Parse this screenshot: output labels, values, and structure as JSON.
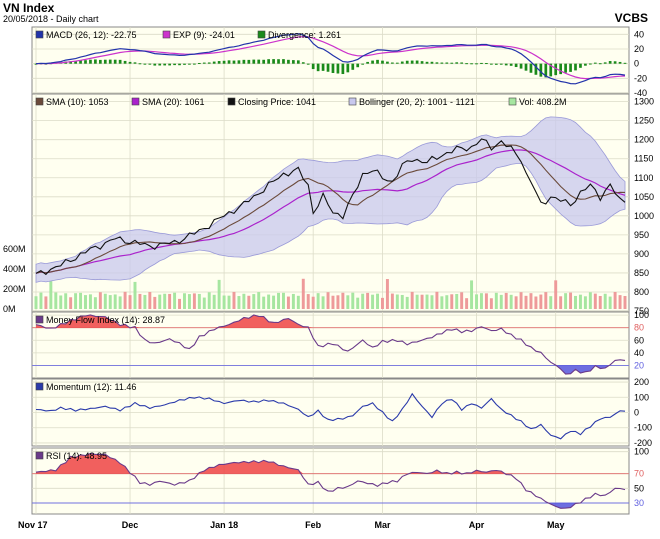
{
  "header": {
    "title": "VN Index",
    "subtitle": "20/05/2018 - Daily chart",
    "broker": "VCBS"
  },
  "colors": {
    "panel_bg": "#fffff0",
    "grid": "#dcdcc8",
    "macd": "#2233aa",
    "exp": "#cc33cc",
    "divergence": "#1a8a1a",
    "sma10": "#6b4a3a",
    "sma20": "#aa22cc",
    "price": "#111111",
    "bollinger_fill": "#c8c8ee",
    "bollinger_edge": "#9a9ad8",
    "vol_up": "#a6e6a0",
    "vol_down": "#ee9a9a",
    "mfi": "#6a3a8a",
    "mom": "#2a3aaa",
    "rsi": "#6a3a8a",
    "over": "#ee4444",
    "under": "#5555dd"
  },
  "chart_data": {
    "type": "line",
    "n": 120,
    "x_ticks": [
      {
        "label": "Nov 17",
        "idx": 0
      },
      {
        "label": "Dec",
        "idx": 19
      },
      {
        "label": "Jan 18",
        "idx": 38
      },
      {
        "label": "Feb",
        "idx": 56
      },
      {
        "label": "Mar",
        "idx": 70
      },
      {
        "label": "Apr",
        "idx": 89
      },
      {
        "label": "May",
        "idx": 105
      }
    ],
    "price_anchors": [
      [
        0,
        845
      ],
      [
        5,
        870
      ],
      [
        10,
        905
      ],
      [
        16,
        940
      ],
      [
        20,
        930
      ],
      [
        23,
        920
      ],
      [
        28,
        930
      ],
      [
        33,
        960
      ],
      [
        38,
        1000
      ],
      [
        42,
        1030
      ],
      [
        47,
        1080
      ],
      [
        50,
        1110
      ],
      [
        53,
        1120
      ],
      [
        55,
        1080
      ],
      [
        56,
        1010
      ],
      [
        58,
        1050
      ],
      [
        60,
        1010
      ],
      [
        62,
        1000
      ],
      [
        64,
        1050
      ],
      [
        66,
        1110
      ],
      [
        68,
        1120
      ],
      [
        70,
        1100
      ],
      [
        72,
        1090
      ],
      [
        74,
        1130
      ],
      [
        76,
        1150
      ],
      [
        79,
        1140
      ],
      [
        82,
        1160
      ],
      [
        85,
        1175
      ],
      [
        88,
        1180
      ],
      [
        90,
        1200
      ],
      [
        92,
        1180
      ],
      [
        94,
        1195
      ],
      [
        96,
        1175
      ],
      [
        98,
        1150
      ],
      [
        99,
        1110
      ],
      [
        100,
        1090
      ],
      [
        102,
        1030
      ],
      [
        104,
        1050
      ],
      [
        106,
        1040
      ],
      [
        108,
        1030
      ],
      [
        110,
        1060
      ],
      [
        112,
        1080
      ],
      [
        114,
        1050
      ],
      [
        116,
        1080
      ],
      [
        118,
        1040
      ],
      [
        119,
        1041
      ]
    ],
    "mfi_anchors": [
      [
        0,
        85
      ],
      [
        3,
        78
      ],
      [
        6,
        88
      ],
      [
        10,
        100
      ],
      [
        14,
        97
      ],
      [
        17,
        85
      ],
      [
        20,
        80
      ],
      [
        22,
        60
      ],
      [
        24,
        55
      ],
      [
        27,
        62
      ],
      [
        29,
        55
      ],
      [
        31,
        45
      ],
      [
        33,
        65
      ],
      [
        36,
        78
      ],
      [
        39,
        85
      ],
      [
        42,
        95
      ],
      [
        45,
        100
      ],
      [
        48,
        87
      ],
      [
        51,
        95
      ],
      [
        53,
        85
      ],
      [
        55,
        80
      ],
      [
        57,
        50
      ],
      [
        60,
        55
      ],
      [
        63,
        42
      ],
      [
        66,
        60
      ],
      [
        68,
        48
      ],
      [
        70,
        58
      ],
      [
        73,
        60
      ],
      [
        75,
        54
      ],
      [
        77,
        58
      ],
      [
        80,
        65
      ],
      [
        82,
        72
      ],
      [
        84,
        78
      ],
      [
        86,
        74
      ],
      [
        88,
        75
      ],
      [
        90,
        82
      ],
      [
        92,
        75
      ],
      [
        94,
        78
      ],
      [
        96,
        68
      ],
      [
        98,
        60
      ],
      [
        100,
        48
      ],
      [
        102,
        40
      ],
      [
        104,
        25
      ],
      [
        106,
        15
      ],
      [
        107,
        5
      ],
      [
        109,
        12
      ],
      [
        111,
        8
      ],
      [
        113,
        18
      ],
      [
        115,
        15
      ],
      [
        117,
        28
      ],
      [
        119,
        28.87
      ]
    ],
    "mom_anchors": [
      [
        0,
        20
      ],
      [
        3,
        10
      ],
      [
        5,
        30
      ],
      [
        8,
        15
      ],
      [
        11,
        25
      ],
      [
        14,
        40
      ],
      [
        17,
        15
      ],
      [
        20,
        60
      ],
      [
        23,
        30
      ],
      [
        26,
        50
      ],
      [
        29,
        80
      ],
      [
        32,
        100
      ],
      [
        35,
        90
      ],
      [
        38,
        60
      ],
      [
        41,
        80
      ],
      [
        44,
        70
      ],
      [
        47,
        80
      ],
      [
        50,
        60
      ],
      [
        53,
        20
      ],
      [
        55,
        -30
      ],
      [
        57,
        10
      ],
      [
        59,
        -50
      ],
      [
        62,
        -40
      ],
      [
        64,
        -20
      ],
      [
        66,
        40
      ],
      [
        68,
        60
      ],
      [
        70,
        0
      ],
      [
        72,
        -60
      ],
      [
        74,
        20
      ],
      [
        76,
        120
      ],
      [
        78,
        40
      ],
      [
        80,
        -30
      ],
      [
        82,
        60
      ],
      [
        84,
        90
      ],
      [
        86,
        20
      ],
      [
        88,
        60
      ],
      [
        90,
        30
      ],
      [
        92,
        90
      ],
      [
        94,
        20
      ],
      [
        96,
        -20
      ],
      [
        98,
        -60
      ],
      [
        100,
        -110
      ],
      [
        102,
        -80
      ],
      [
        104,
        -150
      ],
      [
        106,
        -170
      ],
      [
        108,
        -120
      ],
      [
        110,
        -140
      ],
      [
        112,
        -90
      ],
      [
        114,
        -40
      ],
      [
        116,
        -30
      ],
      [
        118,
        10
      ],
      [
        119,
        11.46
      ]
    ],
    "rsi_anchors": [
      [
        0,
        72
      ],
      [
        4,
        75
      ],
      [
        7,
        92
      ],
      [
        11,
        97
      ],
      [
        14,
        96
      ],
      [
        17,
        85
      ],
      [
        19,
        72
      ],
      [
        21,
        58
      ],
      [
        23,
        55
      ],
      [
        25,
        60
      ],
      [
        28,
        55
      ],
      [
        31,
        60
      ],
      [
        34,
        75
      ],
      [
        37,
        82
      ],
      [
        40,
        85
      ],
      [
        43,
        86
      ],
      [
        47,
        87
      ],
      [
        50,
        80
      ],
      [
        53,
        75
      ],
      [
        55,
        55
      ],
      [
        57,
        58
      ],
      [
        59,
        45
      ],
      [
        61,
        50
      ],
      [
        63,
        52
      ],
      [
        65,
        60
      ],
      [
        67,
        57
      ],
      [
        69,
        54
      ],
      [
        71,
        58
      ],
      [
        73,
        60
      ],
      [
        75,
        70
      ],
      [
        77,
        72
      ],
      [
        79,
        70
      ],
      [
        81,
        74
      ],
      [
        83,
        70
      ],
      [
        85,
        72
      ],
      [
        87,
        70
      ],
      [
        89,
        74
      ],
      [
        91,
        72
      ],
      [
        93,
        75
      ],
      [
        95,
        70
      ],
      [
        97,
        64
      ],
      [
        99,
        48
      ],
      [
        101,
        40
      ],
      [
        103,
        32
      ],
      [
        105,
        25
      ],
      [
        107,
        22
      ],
      [
        109,
        28
      ],
      [
        111,
        35
      ],
      [
        113,
        42
      ],
      [
        115,
        40
      ],
      [
        117,
        50
      ],
      [
        119,
        48.95
      ]
    ],
    "panels": [
      {
        "id": "macd",
        "ylim": [
          -40,
          50
        ],
        "yticks": [
          40,
          20,
          0,
          -20,
          -40
        ],
        "legend": [
          {
            "label": "MACD (26, 12): -22.75",
            "color_key": "macd"
          },
          {
            "label": "EXP (9): -24.01",
            "color_key": "exp"
          },
          {
            "label": "Divergence: 1.261",
            "color_key": "divergence"
          }
        ]
      },
      {
        "id": "price",
        "ylim": [
          750,
          1320
        ],
        "yticks": [
          1300,
          1250,
          1200,
          1150,
          1100,
          1050,
          1000,
          950,
          900,
          850,
          800,
          750
        ],
        "vol_ticks": [
          "600M",
          "400M",
          "200M",
          "0M"
        ],
        "vol_max": 800,
        "legend": [
          {
            "label": "SMA (10): 1053",
            "color_key": "sma10"
          },
          {
            "label": "SMA (20): 1061",
            "color_key": "sma20"
          },
          {
            "label": "Closing Price: 1041",
            "color_key": "price"
          },
          {
            "label": "Bollinger (20, 2): 1001 - 1121",
            "color_key": "bollinger_fill"
          },
          {
            "label": "Vol: 408.2M",
            "color_key": "vol_up"
          }
        ]
      },
      {
        "id": "mfi",
        "ylim": [
          0,
          105
        ],
        "yticks": [
          100,
          80,
          60,
          40,
          20
        ],
        "over": 80,
        "under": 20,
        "legend": [
          {
            "label": "Money Flow Index (14): 28.87",
            "color_key": "mfi"
          }
        ]
      },
      {
        "id": "mom",
        "ylim": [
          -220,
          220
        ],
        "yticks": [
          200,
          100,
          0,
          -100,
          -200
        ],
        "legend": [
          {
            "label": "Momentum (12): 11.46",
            "color_key": "mom"
          }
        ]
      },
      {
        "id": "rsi",
        "ylim": [
          15,
          105
        ],
        "yticks": [
          100,
          70,
          50,
          30
        ],
        "over": 70,
        "under": 30,
        "legend": [
          {
            "label": "RSI (14): 48.95",
            "color_key": "rsi"
          }
        ]
      }
    ]
  }
}
